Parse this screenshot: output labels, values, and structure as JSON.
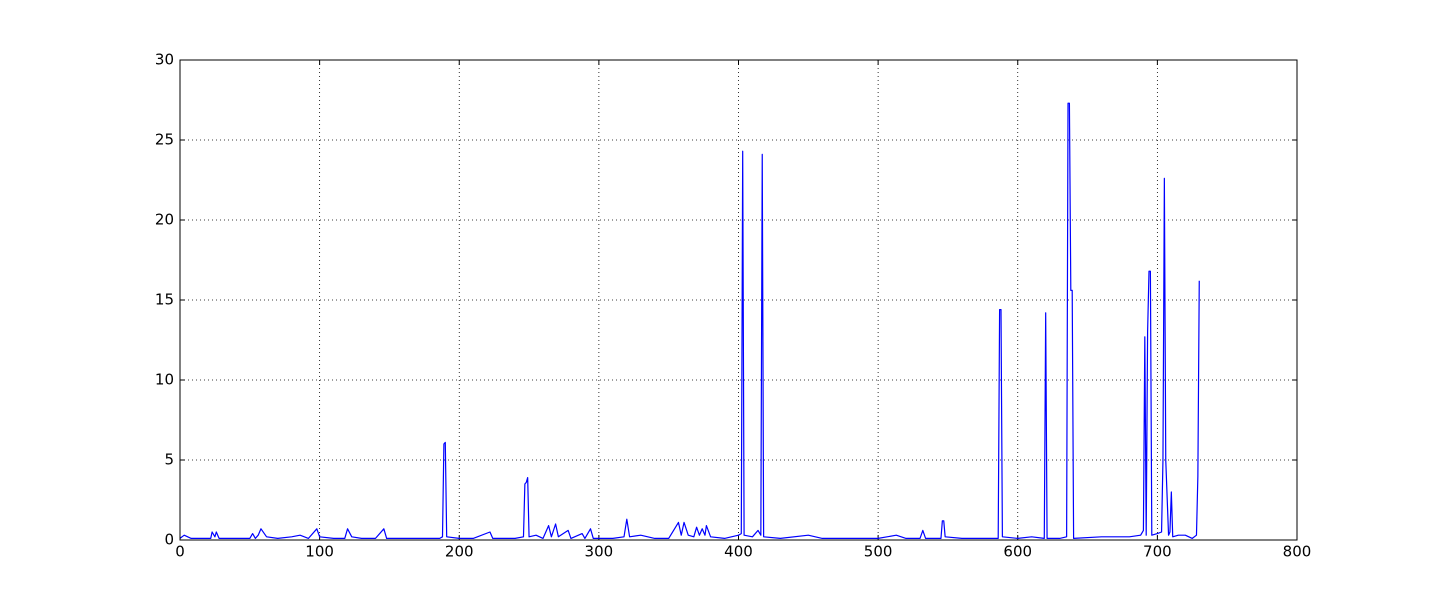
{
  "chart_data": {
    "type": "line",
    "x": [
      0,
      3,
      8,
      15,
      22,
      23,
      25,
      26,
      28,
      40,
      50,
      52,
      54,
      56,
      58,
      62,
      70,
      80,
      86,
      92,
      98,
      100,
      110,
      118,
      120,
      123,
      130,
      140,
      146,
      148,
      160,
      175,
      186,
      188,
      189,
      190,
      191,
      200,
      210,
      222,
      224,
      240,
      246,
      247,
      248,
      249,
      250,
      255,
      260,
      264,
      266,
      269,
      271,
      278,
      280,
      288,
      290,
      294,
      296,
      310,
      318,
      320,
      322,
      330,
      340,
      350,
      357,
      359,
      361,
      364,
      368,
      370,
      372,
      374,
      376,
      377,
      380,
      390,
      400,
      402,
      403,
      404,
      410,
      414,
      416,
      417,
      418,
      430,
      450,
      460,
      480,
      500,
      513,
      520,
      530,
      532,
      534,
      545,
      546,
      547,
      548,
      560,
      575,
      586,
      587,
      588,
      589,
      600,
      610,
      619,
      620,
      621,
      630,
      635,
      636,
      637,
      638,
      639,
      640,
      660,
      680,
      688,
      690,
      691,
      692,
      693,
      694,
      695,
      696,
      700,
      703,
      704,
      705,
      706,
      708,
      709,
      710,
      711,
      715,
      720,
      725,
      728,
      729,
      730
    ],
    "values": [
      0.1,
      0.3,
      0.1,
      0.1,
      0.1,
      0.5,
      0.2,
      0.5,
      0.1,
      0.1,
      0.1,
      0.4,
      0.1,
      0.3,
      0.7,
      0.2,
      0.1,
      0.2,
      0.3,
      0.1,
      0.7,
      0.2,
      0.1,
      0.1,
      0.7,
      0.2,
      0.1,
      0.1,
      0.7,
      0.1,
      0.1,
      0.1,
      0.1,
      0.2,
      6.0,
      6.1,
      0.2,
      0.1,
      0.1,
      0.5,
      0.1,
      0.1,
      0.2,
      3.5,
      3.6,
      3.9,
      0.2,
      0.3,
      0.1,
      0.9,
      0.2,
      1.0,
      0.2,
      0.6,
      0.1,
      0.4,
      0.1,
      0.7,
      0.1,
      0.1,
      0.2,
      1.3,
      0.2,
      0.3,
      0.1,
      0.1,
      1.1,
      0.3,
      1.1,
      0.3,
      0.2,
      0.8,
      0.3,
      0.7,
      0.3,
      0.9,
      0.2,
      0.1,
      0.3,
      0.4,
      24.3,
      0.3,
      0.2,
      0.6,
      0.3,
      24.1,
      0.2,
      0.1,
      0.3,
      0.1,
      0.1,
      0.1,
      0.3,
      0.1,
      0.1,
      0.6,
      0.1,
      0.1,
      1.2,
      1.2,
      0.2,
      0.1,
      0.1,
      0.1,
      14.4,
      14.4,
      0.2,
      0.1,
      0.2,
      0.1,
      14.2,
      0.1,
      0.1,
      0.2,
      27.3,
      27.3,
      15.6,
      15.6,
      0.1,
      0.2,
      0.2,
      0.3,
      0.6,
      12.7,
      0.3,
      13.0,
      16.8,
      16.8,
      0.3,
      0.4,
      0.5,
      5.0,
      22.6,
      5.0,
      0.3,
      0.5,
      3.0,
      0.2,
      0.3,
      0.3,
      0.1,
      0.3,
      4.0,
      16.2
    ],
    "color": "#0000ff",
    "xlim": [
      0,
      800
    ],
    "xticks": [
      0,
      100,
      200,
      300,
      400,
      500,
      600,
      700,
      800
    ],
    "ylim": [
      0,
      30
    ],
    "yticks": [
      0,
      5,
      10,
      15,
      20,
      25,
      30
    ],
    "grid": true
  }
}
